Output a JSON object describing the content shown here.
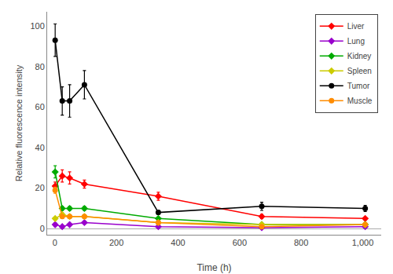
{
  "chart_data": {
    "type": "line",
    "x": [
      1,
      24,
      48,
      96,
      336,
      672,
      1008
    ],
    "series": [
      {
        "name": "Liver",
        "color": "#ff0000",
        "marker": "diamond",
        "values": [
          21,
          26,
          25,
          22,
          16,
          6,
          5
        ],
        "yerr": [
          2,
          3,
          3,
          2,
          2,
          1,
          0.5
        ]
      },
      {
        "name": "Lung",
        "color": "#9900cc",
        "marker": "diamond",
        "values": [
          2,
          1,
          2,
          3,
          1,
          0.5,
          1
        ],
        "yerr": [
          1,
          0.5,
          0.5,
          0.5,
          0.3,
          0.2,
          0.3
        ]
      },
      {
        "name": "Kidney",
        "color": "#00aa00",
        "marker": "diamond",
        "values": [
          28,
          10,
          10,
          10,
          5,
          2,
          2
        ],
        "yerr": [
          3,
          1,
          1,
          1,
          0.5,
          0.3,
          0.3
        ]
      },
      {
        "name": "Spleen",
        "color": "#cccc00",
        "marker": "diamond",
        "values": [
          5,
          7,
          6,
          6,
          3,
          2,
          2
        ],
        "yerr": [
          0.5,
          1,
          0.5,
          0.5,
          0.3,
          0.3,
          0.3
        ]
      },
      {
        "name": "Tumor",
        "color": "#000000",
        "marker": "circle",
        "values": [
          93,
          63,
          63,
          71,
          8,
          11,
          10
        ],
        "yerr": [
          8,
          7,
          8,
          7,
          1,
          2,
          1.5
        ]
      },
      {
        "name": "Muscle",
        "color": "#ff8c00",
        "marker": "circle",
        "values": [
          19,
          6,
          6,
          6,
          3,
          1,
          2
        ],
        "yerr": [
          1.5,
          0.5,
          0.5,
          0.5,
          0.5,
          0.3,
          0.3
        ]
      }
    ],
    "x_label": "Time (h)",
    "y_label": "Relative fluorescence intensity",
    "xlim": [
      -25,
      1060
    ],
    "ylim": [
      -3,
      107
    ],
    "xticks": [
      0,
      200,
      400,
      600,
      800,
      {
        "value": 1000,
        "label": "1,000"
      }
    ],
    "yticks": [
      0,
      20,
      40,
      60,
      80,
      100
    ],
    "grid": false,
    "legend": "upper right"
  }
}
